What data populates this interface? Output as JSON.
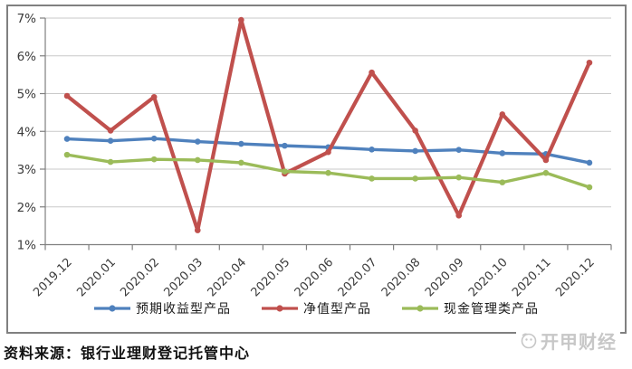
{
  "chart_data": {
    "type": "line",
    "x_labels": [
      "2019.12",
      "2020.01",
      "2020.02",
      "2020.03",
      "2020.04",
      "2020.05",
      "2020.06",
      "2020.07",
      "2020.08",
      "2020.09",
      "2020.10",
      "2020.11",
      "2020.12"
    ],
    "y_ticks": [
      "1%",
      "2%",
      "3%",
      "4%",
      "5%",
      "6%",
      "7%"
    ],
    "ylim": [
      1,
      7
    ],
    "grid": true,
    "legend_position": "bottom",
    "series": [
      {
        "name": "预期收益型产品",
        "color": "#4F81BD",
        "values": [
          3.8,
          3.75,
          3.81,
          3.73,
          3.67,
          3.62,
          3.58,
          3.52,
          3.48,
          3.51,
          3.42,
          3.4,
          3.17
        ]
      },
      {
        "name": "净值型产品",
        "color": "#C0504D",
        "values": [
          4.94,
          4.02,
          4.91,
          1.38,
          6.95,
          2.88,
          3.45,
          5.56,
          4.02,
          1.77,
          4.45,
          3.24,
          5.82
        ]
      },
      {
        "name": "现金管理类产品",
        "color": "#9BBB59",
        "values": [
          3.38,
          3.19,
          3.26,
          3.24,
          3.17,
          2.94,
          2.9,
          2.75,
          2.75,
          2.78,
          2.65,
          2.9,
          2.52
        ]
      }
    ],
    "colors": {
      "grid": "#c9c9c9",
      "axis": "#7f7f7f",
      "tick_label": "#3b3b3b",
      "frame_border": "#808080"
    }
  },
  "footer": {
    "source": "资料来源：银行业理财登记托管中心",
    "logo_text": "开甲财经"
  }
}
